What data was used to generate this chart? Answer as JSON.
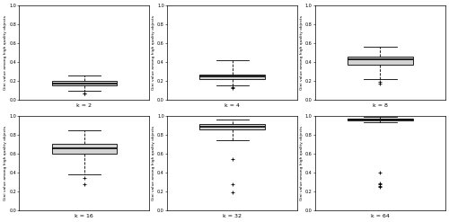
{
  "panels": [
    {
      "label": "k = 2",
      "q1": 0.155,
      "median": 0.175,
      "q3": 0.195,
      "whisker_low": 0.095,
      "whisker_high": 0.26,
      "outliers_low": [
        0.07,
        0.062
      ],
      "outliers_high": []
    },
    {
      "label": "k = 4",
      "q1": 0.215,
      "median": 0.245,
      "q3": 0.265,
      "whisker_low": 0.155,
      "whisker_high": 0.415,
      "outliers_low": [
        0.135,
        0.125
      ],
      "outliers_high": []
    },
    {
      "label": "k = 8",
      "q1": 0.375,
      "median": 0.425,
      "q3": 0.46,
      "whisker_low": 0.22,
      "whisker_high": 0.565,
      "outliers_low": [
        0.185,
        0.175
      ],
      "outliers_high": []
    },
    {
      "label": "k = 16",
      "q1": 0.6,
      "median": 0.66,
      "q3": 0.705,
      "whisker_low": 0.375,
      "whisker_high": 0.845,
      "outliers_low": [
        0.345,
        0.27
      ],
      "outliers_high": []
    },
    {
      "label": "k = 32",
      "q1": 0.86,
      "median": 0.885,
      "q3": 0.91,
      "whisker_low": 0.745,
      "whisker_high": 0.965,
      "outliers_low": [
        0.545,
        0.275,
        0.19
      ],
      "outliers_high": []
    },
    {
      "label": "k = 64",
      "q1": 0.955,
      "median": 0.965,
      "q3": 0.975,
      "whisker_low": 0.93,
      "whisker_high": 0.99,
      "outliers_low": [
        0.395,
        0.285,
        0.27,
        0.255,
        0.245
      ],
      "outliers_high": []
    }
  ],
  "ylim": [
    0.0,
    1.0
  ],
  "yticks": [
    0.0,
    0.2,
    0.4,
    0.6,
    0.8,
    1.0
  ],
  "ylabel": "Gini value among high quality objects",
  "box_color": "#d3d3d3",
  "median_color": "black",
  "whisker_color": "black",
  "outlier_color": "black",
  "figsize": [
    5.0,
    2.47
  ],
  "dpi": 100
}
